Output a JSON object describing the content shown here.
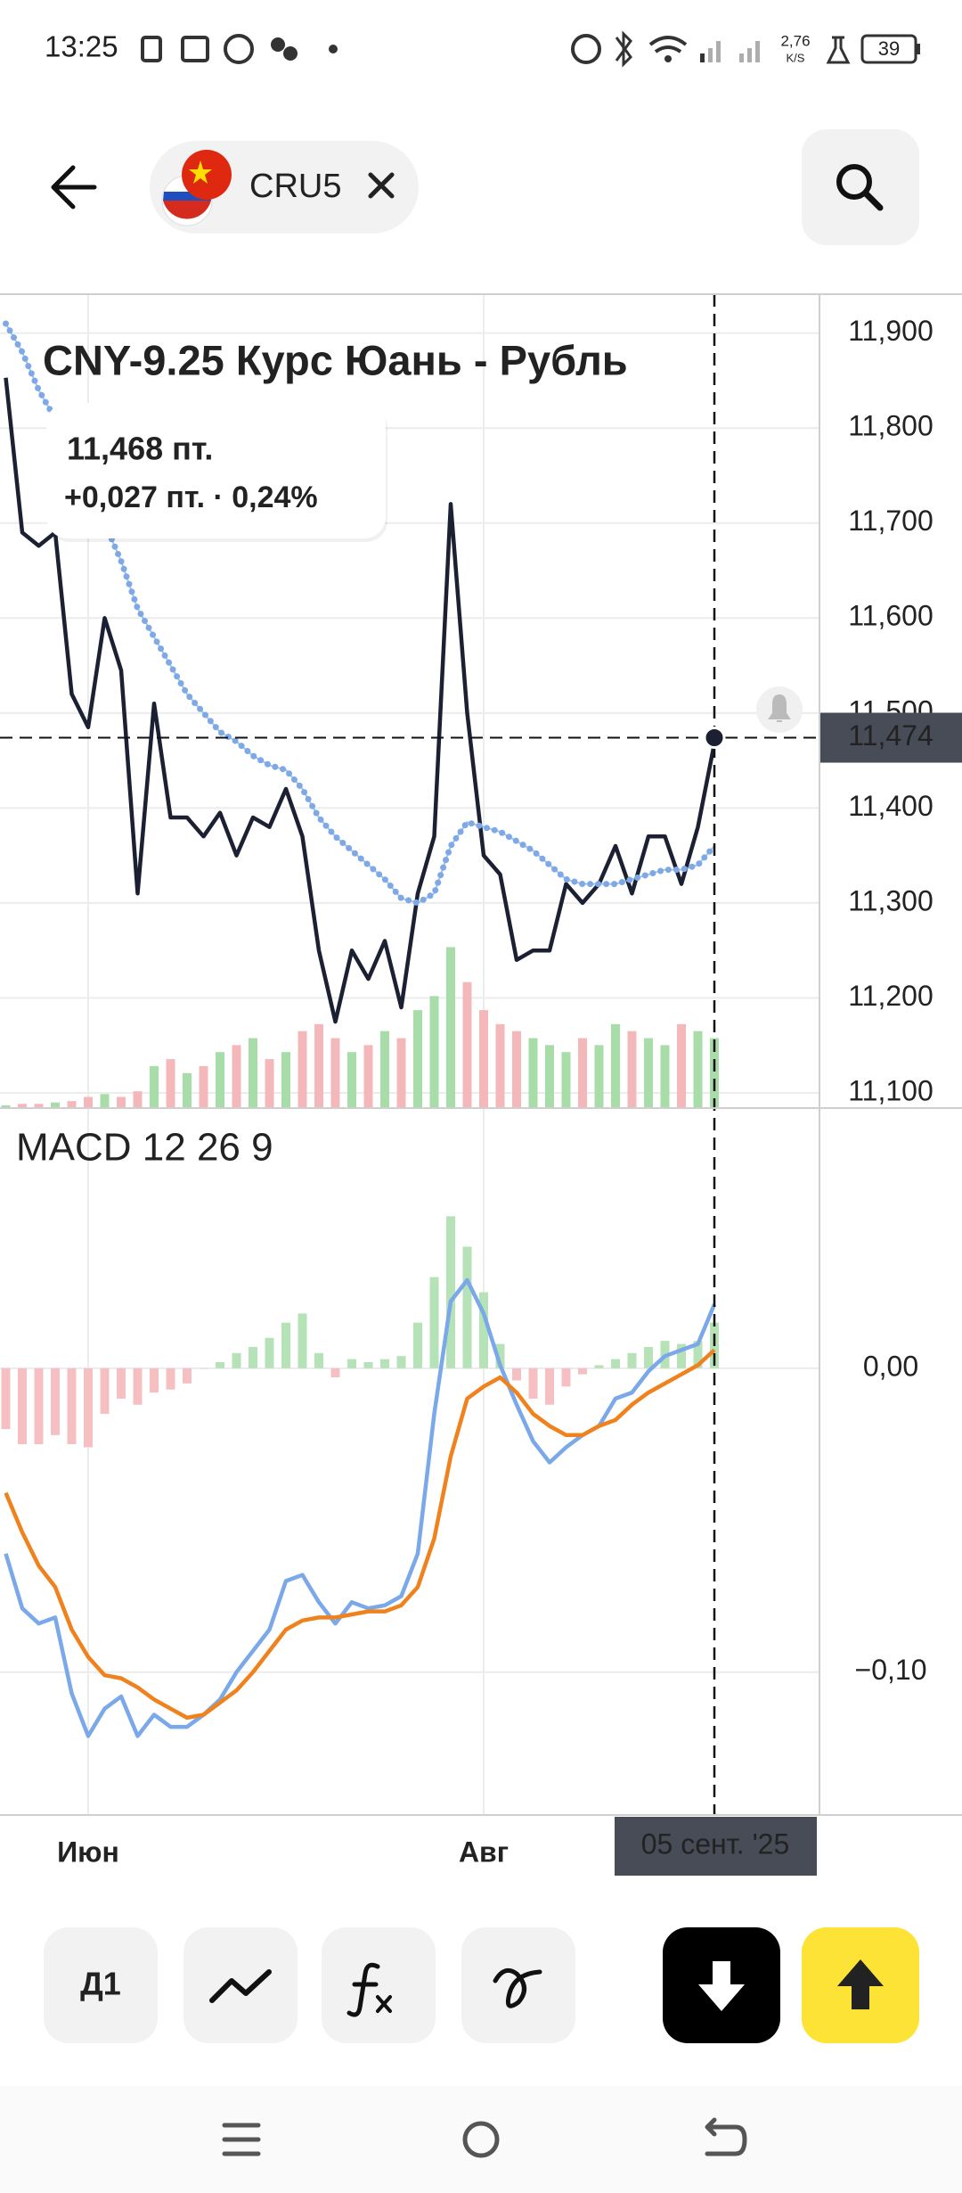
{
  "status_bar": {
    "time": "13:25",
    "net_speed": "2,76",
    "net_unit": "K/S",
    "battery": "39"
  },
  "header": {
    "ticker": "CRU5"
  },
  "tooltip": {
    "price": "11,468 пт.",
    "change": "+0,027 пт. · 0,24%"
  },
  "crosshair_date": "05 сент. '25",
  "chart_data": [
    {
      "type": "line",
      "title": "CNY-9.25 Курс Юань - Рубль",
      "ylim": [
        11.084,
        11.941
      ],
      "yticks": [
        {
          "value": 11.9,
          "label": "11,900"
        },
        {
          "value": 11.8,
          "label": "11,800"
        },
        {
          "value": 11.7,
          "label": "11,700"
        },
        {
          "value": 11.6,
          "label": "11,600"
        },
        {
          "value": 11.5,
          "label": "11,500"
        },
        {
          "value": 11.4,
          "label": "11,400"
        },
        {
          "value": 11.3,
          "label": "11,300"
        },
        {
          "value": 11.2,
          "label": "11,200"
        },
        {
          "value": 11.1,
          "label": "11,100"
        }
      ],
      "grid": true,
      "last_price": {
        "value": 11.474,
        "label": "11,474"
      },
      "series": [
        {
          "color": "#1c2033",
          "values": [
            11.853,
            11.69,
            11.676,
            11.69,
            11.52,
            11.485,
            11.6,
            11.545,
            11.31,
            11.51,
            11.39,
            11.39,
            11.37,
            11.395,
            11.35,
            11.39,
            11.38,
            11.42,
            11.37,
            11.25,
            11.175,
            11.25,
            11.22,
            11.26,
            11.19,
            11.31,
            11.37,
            11.72,
            11.5,
            11.35,
            11.33,
            11.24,
            11.25,
            11.25,
            11.32,
            11.3,
            11.32,
            11.36,
            11.31,
            11.37,
            11.37,
            11.32,
            11.38,
            11.468
          ]
        },
        {
          "color": "#7ea9e6",
          "style": "dotted",
          "values": [
            11.91,
            11.88,
            11.84,
            11.81,
            11.78,
            11.74,
            11.7,
            11.66,
            11.61,
            11.58,
            11.55,
            11.52,
            11.5,
            11.48,
            11.47,
            11.455,
            11.445,
            11.44,
            11.42,
            11.39,
            11.37,
            11.355,
            11.34,
            11.325,
            11.305,
            11.3,
            11.31,
            11.36,
            11.385,
            11.38,
            11.375,
            11.365,
            11.355,
            11.34,
            11.325,
            11.32,
            11.32,
            11.32,
            11.325,
            11.33,
            11.335,
            11.335,
            11.34,
            11.36
          ]
        }
      ],
      "volume": {
        "up_color": "#a8dca9",
        "down_color": "#f5b8ba",
        "values": [
          2,
          3,
          3,
          4,
          5,
          8,
          10,
          8,
          12,
          30,
          35,
          25,
          30,
          40,
          45,
          50,
          35,
          40,
          55,
          60,
          50,
          40,
          45,
          55,
          50,
          70,
          80,
          115,
          90,
          70,
          60,
          55,
          50,
          45,
          40,
          50,
          45,
          60,
          55,
          50,
          45,
          60,
          55,
          50
        ]
      }
    },
    {
      "type": "macd",
      "title": "MACD 12 26 9",
      "categories": [
        null,
        null,
        null,
        null,
        null,
        "Июн",
        null,
        null,
        null,
        null,
        null,
        null,
        null,
        null,
        null,
        null,
        null,
        null,
        null,
        null,
        null,
        null,
        null,
        null,
        null,
        null,
        null,
        null,
        null,
        "Авг",
        null,
        null,
        null,
        null,
        null,
        null,
        null,
        null,
        null,
        null,
        null,
        null,
        null,
        null
      ],
      "ylim": [
        -0.147,
        0.0856
      ],
      "yticks": [
        {
          "value": 0,
          "label": "0,00"
        },
        {
          "value": -0.1,
          "label": "−0,10"
        }
      ],
      "series": [
        {
          "color": "#7aa8e8",
          "values": [
            -0.061,
            -0.079,
            -0.084,
            -0.082,
            -0.107,
            -0.121,
            -0.112,
            -0.108,
            -0.121,
            -0.114,
            -0.118,
            -0.118,
            -0.114,
            -0.109,
            -0.1,
            -0.093,
            -0.086,
            -0.07,
            -0.068,
            -0.077,
            -0.084,
            -0.077,
            -0.079,
            -0.078,
            -0.075,
            -0.061,
            -0.015,
            0.022,
            0.029,
            0.018,
            0.001,
            -0.012,
            -0.024,
            -0.031,
            -0.026,
            -0.022,
            -0.019,
            -0.01,
            -0.008,
            -0.001,
            0.004,
            0.006,
            0.008,
            0.021
          ]
        },
        {
          "color": "#f0821e",
          "values": [
            -0.041,
            -0.054,
            -0.065,
            -0.072,
            -0.086,
            -0.095,
            -0.101,
            -0.102,
            -0.105,
            -0.109,
            -0.112,
            -0.115,
            -0.114,
            -0.11,
            -0.106,
            -0.1,
            -0.093,
            -0.086,
            -0.083,
            -0.082,
            -0.082,
            -0.081,
            -0.08,
            -0.08,
            -0.078,
            -0.072,
            -0.056,
            -0.029,
            -0.01,
            -0.006,
            -0.003,
            -0.008,
            -0.015,
            -0.019,
            -0.022,
            -0.022,
            -0.019,
            -0.017,
            -0.012,
            -0.008,
            -0.005,
            -0.002,
            0.001,
            0.006
          ]
        }
      ],
      "histogram": {
        "up_color": "#b5e2b6",
        "down_color": "#f6c0c2",
        "values": [
          -0.02,
          -0.025,
          -0.025,
          -0.022,
          -0.025,
          -0.026,
          -0.015,
          -0.01,
          -0.012,
          -0.008,
          -0.007,
          -0.005,
          0.0,
          0.002,
          0.005,
          0.007,
          0.01,
          0.015,
          0.018,
          0.005,
          -0.003,
          0.003,
          0.002,
          0.003,
          0.004,
          0.015,
          0.03,
          0.05,
          0.04,
          0.025,
          0.008,
          -0.004,
          -0.01,
          -0.012,
          -0.006,
          -0.002,
          0.001,
          0.003,
          0.005,
          0.007,
          0.009,
          0.008,
          0.009,
          0.015
        ]
      }
    }
  ],
  "toolbar": {
    "interval": "Д1"
  }
}
